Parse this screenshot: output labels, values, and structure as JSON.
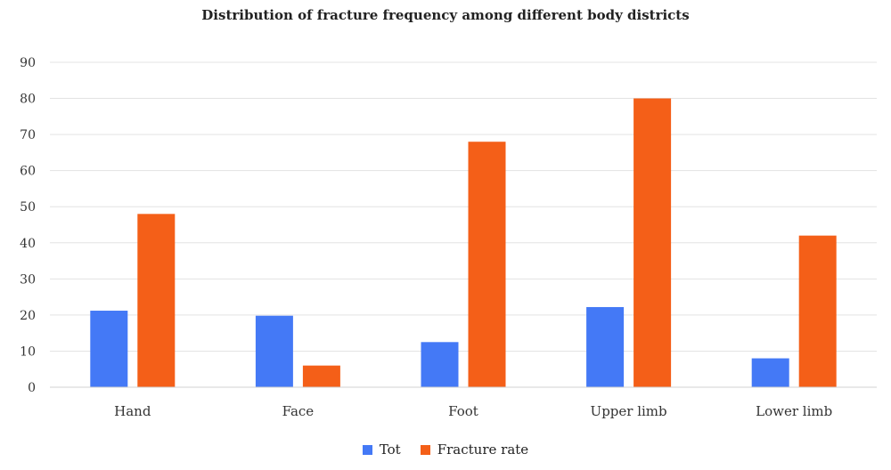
{
  "chart_data": {
    "type": "bar",
    "title": "Distribution of fracture frequency among different body districts",
    "categories": [
      "Hand",
      "Face",
      "Foot",
      "Upper limb",
      "Lower limb"
    ],
    "series": [
      {
        "name": "Tot",
        "color": "#4479F6",
        "values": [
          21.2,
          19.8,
          12.5,
          22.2,
          8.0
        ]
      },
      {
        "name": "Fracture rate",
        "color": "#F45F18",
        "values": [
          48,
          6,
          68,
          80,
          42
        ]
      }
    ],
    "ylim": [
      0,
      90
    ],
    "yticks": [
      0,
      10,
      20,
      30,
      40,
      50,
      60,
      70,
      80,
      90
    ],
    "grid": true,
    "legend_position": "bottom"
  }
}
